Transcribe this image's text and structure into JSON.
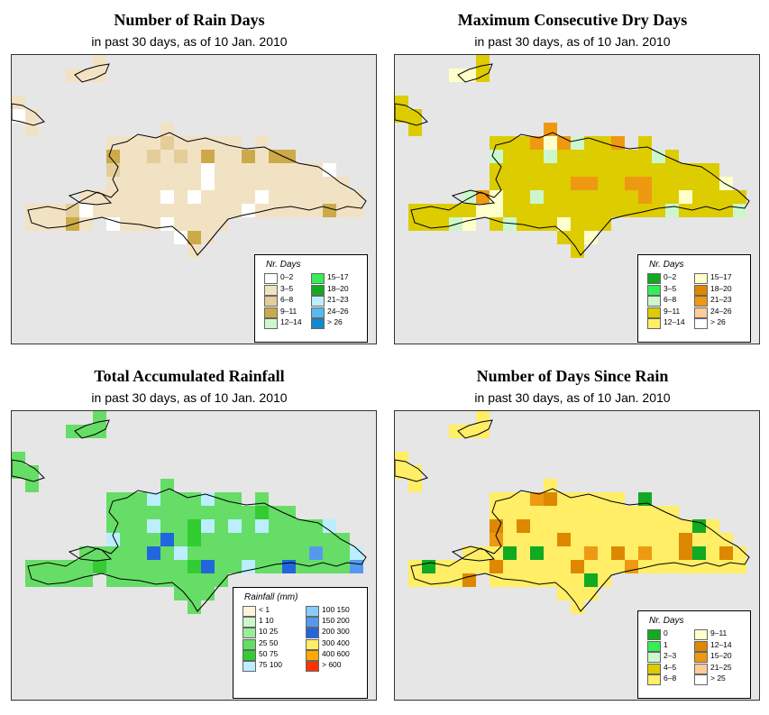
{
  "panels": [
    {
      "title": "Number of Rain Days",
      "subtitle": "in past 30 days, as of  10 Jan. 2010",
      "legend": {
        "title": "Nr. Days",
        "items": [
          {
            "label": "0–2",
            "color": "#ffffff"
          },
          {
            "label": "3–5",
            "color": "#f2e2c4"
          },
          {
            "label": "6–8",
            "color": "#e4cd98"
          },
          {
            "label": "9–11",
            "color": "#ccaa4a"
          },
          {
            "label": "12–14",
            "color": "#ccf7cc"
          },
          {
            "label": "15–17",
            "color": "#33ee55"
          },
          {
            "label": "18–20",
            "color": "#11aa22"
          },
          {
            "label": "21–23",
            "color": "#bbeeff"
          },
          {
            "label": "24–26",
            "color": "#55bbee"
          },
          {
            "label": "> 26",
            "color": "#1188cc"
          }
        ]
      },
      "map": {
        "base_color": "#f2e2c4",
        "accent_colors": [
          "#ffffff",
          "#e4cd98",
          "#ccaa4a"
        ]
      }
    },
    {
      "title": "Maximum Consecutive Dry Days",
      "subtitle": "in past 30 days, as of  10 Jan. 2010",
      "legend": {
        "title": "Nr. Days",
        "items": [
          {
            "label": "0–2",
            "color": "#11aa22"
          },
          {
            "label": "3–5",
            "color": "#33ee55"
          },
          {
            "label": "6–8",
            "color": "#ccf7cc"
          },
          {
            "label": "9–11",
            "color": "#ddcc00"
          },
          {
            "label": "12–14",
            "color": "#ffee66"
          },
          {
            "label": "15–17",
            "color": "#ffffcc"
          },
          {
            "label": "18–20",
            "color": "#dd8800"
          },
          {
            "label": "21–23",
            "color": "#ee9911"
          },
          {
            "label": "24–26",
            "color": "#ffcc99"
          },
          {
            "label": "> 26",
            "color": "#ffffff"
          }
        ]
      },
      "map": {
        "base_color": "#ddcc00",
        "accent_colors": [
          "#ee9911",
          "#ffffcc",
          "#ccf7cc"
        ]
      }
    },
    {
      "title": "Total Accumulated Rainfall",
      "subtitle": "in past 30 days, as of  10 Jan. 2010",
      "legend": {
        "title": "Rainfall (mm)",
        "items": [
          {
            "label": "< 1",
            "color": "#fff3dd"
          },
          {
            "label": "1   10",
            "color": "#ccf7cc"
          },
          {
            "label": "10   25",
            "color": "#99ee99"
          },
          {
            "label": "25   50",
            "color": "#66dd66"
          },
          {
            "label": "50   75",
            "color": "#33cc33"
          },
          {
            "label": "75  100",
            "color": "#bbeeff"
          },
          {
            "label": "100  150",
            "color": "#88ccff"
          },
          {
            "label": "150  200",
            "color": "#5599ee"
          },
          {
            "label": "200  300",
            "color": "#2266dd"
          },
          {
            "label": "300  400",
            "color": "#ffee66"
          },
          {
            "label": "400  600",
            "color": "#ffaa00"
          },
          {
            "label": "> 600",
            "color": "#ff3300"
          }
        ]
      },
      "map": {
        "base_color": "#66dd66",
        "accent_colors": [
          "#bbeeff",
          "#33cc33",
          "#5599ee",
          "#2266dd"
        ]
      }
    },
    {
      "title": "Number of Days Since Rain",
      "subtitle": "in past 30 days, as of  10 Jan. 2010",
      "legend": {
        "title": "Nr. Days",
        "items": [
          {
            "label": "0",
            "color": "#11aa22"
          },
          {
            "label": "1",
            "color": "#33ee55"
          },
          {
            "label": "2–3",
            "color": "#ccf7cc"
          },
          {
            "label": "4–5",
            "color": "#ddcc00"
          },
          {
            "label": "6–8",
            "color": "#ffee66"
          },
          {
            "label": "9–11",
            "color": "#ffffcc"
          },
          {
            "label": "12–14",
            "color": "#dd8800"
          },
          {
            "label": "15–20",
            "color": "#ee9911"
          },
          {
            "label": "21–25",
            "color": "#ffcc99"
          },
          {
            "label": "> 25",
            "color": "#ffffff"
          }
        ]
      },
      "map": {
        "base_color": "#ffee66",
        "accent_colors": [
          "#ee9911",
          "#dd8800",
          "#11aa22"
        ]
      }
    }
  ]
}
